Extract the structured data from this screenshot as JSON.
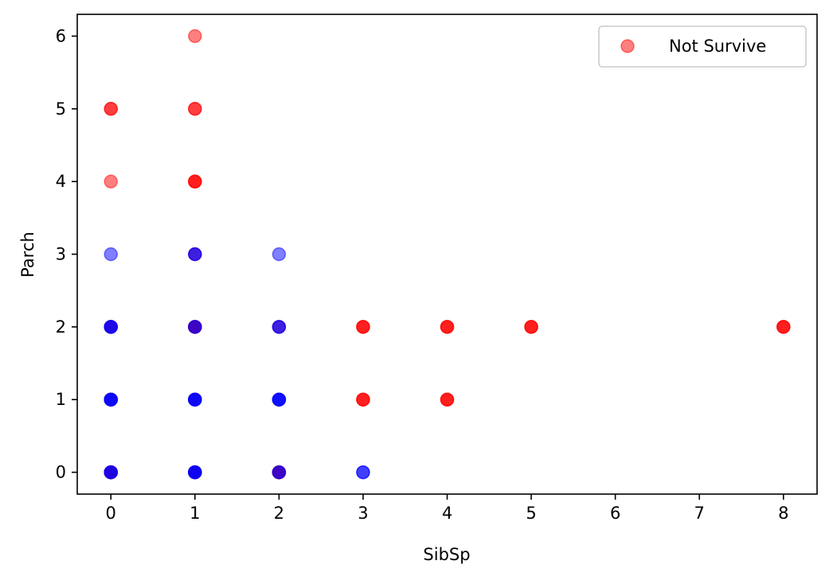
{
  "chart_data": {
    "type": "scatter",
    "title": "",
    "xlabel": "SibSp",
    "ylabel": "Parch",
    "xlim": [
      -0.4,
      8.4
    ],
    "ylim": [
      -0.3,
      6.3
    ],
    "xticks": [
      "0",
      "1",
      "2",
      "3",
      "4",
      "5",
      "6",
      "7",
      "8"
    ],
    "yticks": [
      "0",
      "1",
      "2",
      "3",
      "4",
      "5",
      "6"
    ],
    "grid": false,
    "legend": {
      "position": "top-right",
      "entries": [
        {
          "label": "Not Survive",
          "color": "#ff0000"
        }
      ]
    },
    "series": [
      {
        "name": "Not Survive",
        "color": "#ff0000",
        "opacity": 0.5,
        "points": [
          [
            0,
            0
          ],
          [
            0,
            0
          ],
          [
            0,
            0
          ],
          [
            0,
            0
          ],
          [
            0,
            1
          ],
          [
            0,
            2
          ],
          [
            0,
            2
          ],
          [
            0,
            4
          ],
          [
            0,
            5
          ],
          [
            0,
            5
          ],
          [
            1,
            0
          ],
          [
            1,
            0
          ],
          [
            1,
            1
          ],
          [
            1,
            2
          ],
          [
            1,
            2
          ],
          [
            1,
            2
          ],
          [
            1,
            2
          ],
          [
            1,
            3
          ],
          [
            1,
            4
          ],
          [
            1,
            4
          ],
          [
            1,
            4
          ],
          [
            1,
            5
          ],
          [
            1,
            5
          ],
          [
            1,
            6
          ],
          [
            2,
            0
          ],
          [
            2,
            0
          ],
          [
            2,
            0
          ],
          [
            2,
            0
          ],
          [
            2,
            2
          ],
          [
            3,
            1
          ],
          [
            3,
            1
          ],
          [
            3,
            1
          ],
          [
            3,
            2
          ],
          [
            3,
            2
          ],
          [
            3,
            2
          ],
          [
            4,
            1
          ],
          [
            4,
            1
          ],
          [
            4,
            1
          ],
          [
            4,
            2
          ],
          [
            4,
            2
          ],
          [
            4,
            2
          ],
          [
            5,
            2
          ],
          [
            5,
            2
          ],
          [
            5,
            2
          ],
          [
            8,
            2
          ],
          [
            8,
            2
          ],
          [
            8,
            2
          ]
        ]
      },
      {
        "name": "",
        "color": "#0000ff",
        "opacity": 0.5,
        "points": [
          [
            0,
            0
          ],
          [
            0,
            0
          ],
          [
            0,
            0
          ],
          [
            0,
            1
          ],
          [
            0,
            1
          ],
          [
            0,
            1
          ],
          [
            0,
            1
          ],
          [
            0,
            2
          ],
          [
            0,
            2
          ],
          [
            0,
            2
          ],
          [
            0,
            3
          ],
          [
            1,
            0
          ],
          [
            1,
            0
          ],
          [
            1,
            0
          ],
          [
            1,
            0
          ],
          [
            1,
            1
          ],
          [
            1,
            1
          ],
          [
            1,
            1
          ],
          [
            1,
            1
          ],
          [
            1,
            2
          ],
          [
            1,
            2
          ],
          [
            1,
            3
          ],
          [
            1,
            3
          ],
          [
            2,
            0
          ],
          [
            2,
            0
          ],
          [
            2,
            1
          ],
          [
            2,
            1
          ],
          [
            2,
            1
          ],
          [
            2,
            1
          ],
          [
            2,
            2
          ],
          [
            2,
            2
          ],
          [
            2,
            3
          ],
          [
            3,
            0
          ],
          [
            3,
            0
          ]
        ]
      }
    ]
  }
}
